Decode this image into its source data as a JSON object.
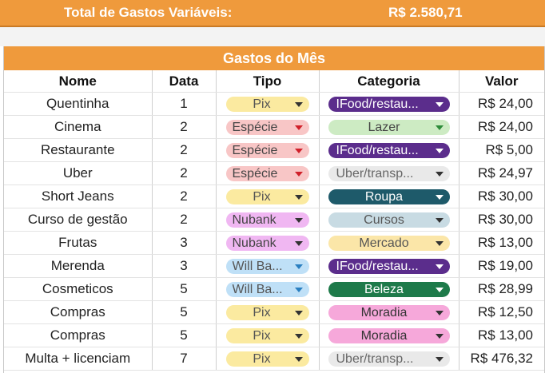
{
  "total": {
    "label": "Total de Gastos Variáveis:",
    "value": "R$ 2.580,71"
  },
  "sheet_title": "Gastos do Mês",
  "columns": [
    "Nome",
    "Data",
    "Tipo",
    "Categoria",
    "Valor"
  ],
  "rows": [
    {
      "nome": "Quentinha",
      "data": "1",
      "tipo": "Pix",
      "categoria": "IFood/restau...",
      "valor": "R$ 24,00"
    },
    {
      "nome": "Cinema",
      "data": "2",
      "tipo": "Espécie",
      "categoria": "Lazer",
      "valor": "R$ 24,00"
    },
    {
      "nome": "Restaurante",
      "data": "2",
      "tipo": "Espécie",
      "categoria": "IFood/restau...",
      "valor": "R$ 5,00"
    },
    {
      "nome": "Uber",
      "data": "2",
      "tipo": "Espécie",
      "categoria": "Uber/transp...",
      "valor": "R$ 24,97"
    },
    {
      "nome": "Short Jeans",
      "data": "2",
      "tipo": "Pix",
      "categoria": "Roupa",
      "valor": "R$ 30,00"
    },
    {
      "nome": "Curso de gestão",
      "data": "2",
      "tipo": "Nubank",
      "categoria": "Cursos",
      "valor": "R$ 30,00"
    },
    {
      "nome": "Frutas",
      "data": "3",
      "tipo": "Nubank",
      "categoria": "Mercado",
      "valor": "R$ 13,00"
    },
    {
      "nome": "Merenda",
      "data": "3",
      "tipo": "Will Ba...",
      "categoria": "IFood/restau...",
      "valor": "R$ 19,00"
    },
    {
      "nome": "Cosmeticos",
      "data": "5",
      "tipo": "Will Ba...",
      "categoria": "Beleza",
      "valor": "R$ 28,99"
    },
    {
      "nome": "Compras",
      "data": "5",
      "tipo": "Pix",
      "categoria": "Moradia",
      "valor": "R$ 12,50"
    },
    {
      "nome": "Compras",
      "data": "5",
      "tipo": "Pix",
      "categoria": "Moradia",
      "valor": "R$ 13,00"
    },
    {
      "nome": "Multa + licenciam",
      "data": "7",
      "tipo": "Pix",
      "categoria": "Uber/transp...",
      "valor": "R$ 476,32"
    }
  ],
  "tipo_styles": {
    "Pix": {
      "bg": "#fbeaa0",
      "fg": "#555",
      "center": true
    },
    "Espécie": {
      "bg": "#f8c6c6",
      "fg": "#444",
      "center": false,
      "arrow": "#d0202a"
    },
    "Nubank": {
      "bg": "#f0b7f2",
      "fg": "#444",
      "center": false
    },
    "Will Ba...": {
      "bg": "#bfe0f7",
      "fg": "#555",
      "center": false,
      "arrow": "#2a7fc0"
    }
  },
  "categoria_styles": {
    "IFood/restau...": {
      "bg": "#5b2d8c",
      "fg": "#ffffff",
      "center": false,
      "arrow": "#ffffff"
    },
    "Lazer": {
      "bg": "#cdebc3",
      "fg": "#444",
      "center": true,
      "arrow": "#2e8b3a"
    },
    "Uber/transp...": {
      "bg": "#e9e9e9",
      "fg": "#666",
      "center": false
    },
    "Roupa": {
      "bg": "#1e5a6a",
      "fg": "#ffffff",
      "center": true,
      "arrow": "#ffffff"
    },
    "Cursos": {
      "bg": "#c8dbe3",
      "fg": "#555",
      "center": true
    },
    "Mercado": {
      "bg": "#fbe6a8",
      "fg": "#555",
      "center": true
    },
    "Beleza": {
      "bg": "#1e7a4a",
      "fg": "#ffffff",
      "center": true,
      "arrow": "#ffffff"
    },
    "Moradia": {
      "bg": "#f6a8da",
      "fg": "#333",
      "center": true
    }
  }
}
